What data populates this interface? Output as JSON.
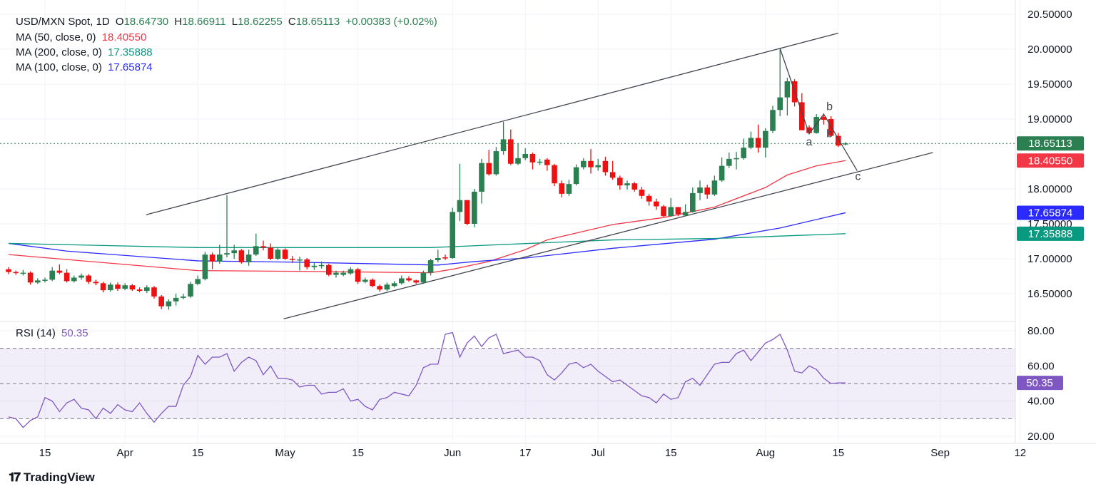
{
  "header": {
    "symbol": "USD/MXN Spot, 1D",
    "open_label": "O",
    "open": "18.64730",
    "high_label": "H",
    "high": "18.66911",
    "low_label": "L",
    "low": "18.62255",
    "close_label": "C",
    "close": "18.65113",
    "change": "+0.00383 (+0.02%)"
  },
  "indicators": [
    {
      "label": "MA (50, close, 0)",
      "value": "18.40550",
      "color": "#f23645"
    },
    {
      "label": "MA (200, close, 0)",
      "value": "17.35888",
      "color": "#089981"
    },
    {
      "label": "MA (100, close, 0)",
      "value": "17.65874",
      "color": "#2a2aff"
    }
  ],
  "rsi": {
    "label": "RSI (14)",
    "value": "50.35",
    "color": "#7e57c2"
  },
  "branding": {
    "name": "TradingView"
  },
  "colors": {
    "up": "#2b7f50",
    "down": "#ee1111",
    "grid": "#f0f3fa",
    "last_price": "#2b7f50"
  },
  "chart_data": {
    "type": "candlestick",
    "price_axis": {
      "ticks": [
        "20.50000",
        "20.00000",
        "19.50000",
        "19.00000",
        "18.00000",
        "17.50000",
        "17.00000",
        "16.50000"
      ],
      "range": [
        16.2,
        20.6
      ]
    },
    "price_labels": [
      {
        "value": "18.65113",
        "price": 18.65113,
        "color": "#2b7f50"
      },
      {
        "value": "18.40550",
        "price": 18.4055,
        "color": "#f23645"
      },
      {
        "value": "17.65874",
        "price": 17.65874,
        "color": "#2a2aff"
      },
      {
        "value": "17.35888",
        "price": 17.35888,
        "color": "#089981"
      }
    ],
    "time_axis": [
      {
        "label": "15",
        "bar": 5
      },
      {
        "label": "Apr",
        "bar": 16
      },
      {
        "label": "15",
        "bar": 26
      },
      {
        "label": "May",
        "bar": 38
      },
      {
        "label": "15",
        "bar": 48
      },
      {
        "label": "Jun",
        "bar": 61
      },
      {
        "label": "17",
        "bar": 71
      },
      {
        "label": "Jul",
        "bar": 81
      },
      {
        "label": "15",
        "bar": 91
      },
      {
        "label": "Aug",
        "bar": 104
      },
      {
        "label": "15",
        "bar": 114
      },
      {
        "label": "Sep",
        "bar": 128
      },
      {
        "label": "12",
        "bar": 139
      }
    ],
    "candles_ohlc": [
      [
        16.85,
        16.88,
        16.78,
        16.81
      ],
      [
        16.81,
        16.83,
        16.77,
        16.8
      ],
      [
        16.8,
        16.84,
        16.76,
        16.8
      ],
      [
        16.8,
        16.82,
        16.63,
        16.66
      ],
      [
        16.66,
        16.72,
        16.64,
        16.69
      ],
      [
        16.69,
        16.73,
        16.66,
        16.7
      ],
      [
        16.7,
        16.88,
        16.68,
        16.83
      ],
      [
        16.83,
        16.92,
        16.78,
        16.8
      ],
      [
        16.8,
        16.85,
        16.66,
        16.68
      ],
      [
        16.68,
        16.76,
        16.66,
        16.73
      ],
      [
        16.73,
        16.79,
        16.7,
        16.76
      ],
      [
        16.76,
        16.78,
        16.64,
        16.67
      ],
      [
        16.67,
        16.7,
        16.62,
        16.65
      ],
      [
        16.65,
        16.67,
        16.52,
        16.55
      ],
      [
        16.55,
        16.66,
        16.53,
        16.63
      ],
      [
        16.63,
        16.66,
        16.54,
        16.57
      ],
      [
        16.57,
        16.65,
        16.55,
        16.62
      ],
      [
        16.62,
        16.64,
        16.54,
        16.56
      ],
      [
        16.56,
        16.59,
        16.52,
        16.54
      ],
      [
        16.54,
        16.62,
        16.51,
        16.59
      ],
      [
        16.59,
        16.61,
        16.43,
        16.46
      ],
      [
        16.46,
        16.48,
        16.28,
        16.32
      ],
      [
        16.32,
        16.42,
        16.27,
        16.39
      ],
      [
        16.39,
        16.5,
        16.33,
        16.44
      ],
      [
        16.44,
        16.5,
        16.42,
        16.46
      ],
      [
        16.46,
        16.67,
        16.44,
        16.64
      ],
      [
        16.64,
        16.76,
        16.62,
        16.71
      ],
      [
        16.71,
        17.1,
        16.69,
        17.06
      ],
      [
        17.06,
        17.09,
        16.85,
        16.96
      ],
      [
        16.96,
        17.2,
        16.93,
        17.06
      ],
      [
        17.06,
        17.91,
        17.02,
        17.08
      ],
      [
        17.08,
        17.2,
        17.0,
        17.12
      ],
      [
        17.12,
        17.14,
        16.93,
        16.95
      ],
      [
        16.95,
        17.13,
        16.9,
        17.06
      ],
      [
        17.06,
        17.36,
        17.04,
        17.18
      ],
      [
        17.18,
        17.26,
        17.12,
        17.16
      ],
      [
        17.16,
        17.22,
        16.98,
        17.0
      ],
      [
        17.0,
        17.16,
        16.98,
        17.13
      ],
      [
        17.13,
        17.15,
        16.98,
        17.0
      ],
      [
        17.0,
        17.04,
        16.94,
        16.99
      ],
      [
        16.99,
        17.03,
        16.83,
        16.99
      ],
      [
        16.99,
        17.01,
        16.85,
        16.88
      ],
      [
        16.88,
        16.94,
        16.84,
        16.9
      ],
      [
        16.9,
        16.96,
        16.86,
        16.91
      ],
      [
        16.91,
        16.93,
        16.75,
        16.77
      ],
      [
        16.77,
        16.83,
        16.73,
        16.8
      ],
      [
        16.77,
        16.83,
        16.75,
        16.8
      ],
      [
        16.79,
        16.88,
        16.77,
        16.85
      ],
      [
        16.85,
        16.87,
        16.64,
        16.67
      ],
      [
        16.67,
        16.73,
        16.65,
        16.7
      ],
      [
        16.7,
        16.72,
        16.59,
        16.61
      ],
      [
        16.61,
        16.63,
        16.53,
        16.56
      ],
      [
        16.56,
        16.66,
        16.54,
        16.63
      ],
      [
        16.61,
        16.68,
        16.59,
        16.65
      ],
      [
        16.65,
        16.76,
        16.63,
        16.72
      ],
      [
        16.72,
        16.75,
        16.67,
        16.69
      ],
      [
        16.69,
        16.7,
        16.64,
        16.66
      ],
      [
        16.66,
        16.83,
        16.64,
        16.8
      ],
      [
        16.8,
        17.0,
        16.76,
        16.98
      ],
      [
        16.98,
        17.13,
        16.95,
        17.01
      ],
      [
        17.02,
        17.06,
        16.98,
        17.01
      ],
      [
        17.01,
        17.73,
        17.0,
        17.67
      ],
      [
        17.67,
        18.36,
        17.54,
        17.84
      ],
      [
        17.84,
        17.84,
        17.48,
        17.5
      ],
      [
        17.5,
        18.0,
        17.45,
        17.96
      ],
      [
        17.96,
        18.43,
        17.79,
        18.37
      ],
      [
        18.37,
        18.56,
        18.19,
        18.21
      ],
      [
        18.21,
        18.6,
        18.19,
        18.54
      ],
      [
        18.54,
        18.96,
        18.49,
        18.71
      ],
      [
        18.71,
        18.85,
        18.34,
        18.36
      ],
      [
        18.36,
        18.65,
        18.34,
        18.44
      ],
      [
        18.44,
        18.58,
        18.41,
        18.5
      ],
      [
        18.5,
        18.52,
        18.28,
        18.38
      ],
      [
        18.38,
        18.43,
        18.34,
        18.39
      ],
      [
        18.42,
        18.44,
        18.26,
        18.34
      ],
      [
        18.34,
        18.36,
        18.04,
        18.08
      ],
      [
        18.08,
        18.12,
        17.88,
        17.93
      ],
      [
        17.93,
        18.13,
        17.9,
        18.07
      ],
      [
        18.07,
        18.35,
        18.05,
        18.31
      ],
      [
        18.31,
        18.44,
        18.28,
        18.4
      ],
      [
        18.4,
        18.57,
        18.22,
        18.31
      ],
      [
        18.31,
        18.43,
        18.26,
        18.34
      ],
      [
        18.4,
        18.46,
        18.19,
        18.24
      ],
      [
        18.24,
        18.4,
        18.13,
        18.16
      ],
      [
        18.16,
        18.19,
        17.99,
        18.05
      ],
      [
        18.05,
        18.12,
        17.99,
        18.08
      ],
      [
        18.08,
        18.1,
        17.96,
        17.99
      ],
      [
        17.99,
        18.03,
        17.86,
        17.9
      ],
      [
        17.9,
        17.93,
        17.76,
        17.82
      ],
      [
        17.82,
        17.86,
        17.7,
        17.75
      ],
      [
        17.75,
        17.77,
        17.6,
        17.61
      ],
      [
        17.61,
        17.87,
        17.6,
        17.74
      ],
      [
        17.74,
        17.74,
        17.61,
        17.64
      ],
      [
        17.62,
        17.78,
        17.61,
        17.67
      ],
      [
        17.67,
        18.02,
        17.66,
        17.94
      ],
      [
        17.94,
        18.12,
        17.84,
        18.02
      ],
      [
        18.02,
        18.06,
        17.86,
        17.92
      ],
      [
        17.92,
        18.19,
        17.9,
        18.12
      ],
      [
        18.12,
        18.45,
        18.1,
        18.33
      ],
      [
        18.33,
        18.52,
        18.3,
        18.43
      ],
      [
        18.43,
        18.53,
        18.28,
        18.44
      ],
      [
        18.44,
        18.72,
        18.42,
        18.59
      ],
      [
        18.59,
        18.82,
        18.57,
        18.73
      ],
      [
        18.73,
        18.92,
        18.52,
        18.59
      ],
      [
        18.59,
        18.87,
        18.45,
        18.83
      ],
      [
        18.83,
        19.19,
        18.8,
        19.13
      ],
      [
        19.13,
        20.01,
        19.04,
        19.31
      ],
      [
        19.31,
        19.59,
        19.05,
        19.54
      ],
      [
        19.54,
        19.57,
        19.18,
        19.24
      ],
      [
        19.24,
        19.37,
        18.84,
        18.84
      ],
      [
        18.88,
        18.91,
        18.78,
        18.8
      ],
      [
        18.8,
        19.07,
        18.79,
        19.03
      ],
      [
        19.03,
        19.08,
        18.92,
        18.99
      ],
      [
        19.0,
        19.04,
        18.75,
        18.76
      ],
      [
        18.76,
        18.8,
        18.6,
        18.62
      ],
      [
        18.6473,
        18.66911,
        18.62255,
        18.65113
      ]
    ],
    "moving_averages": [
      {
        "name": "MA 50",
        "color": "#f23645",
        "points": [
          [
            0,
            17.06
          ],
          [
            26,
            16.83
          ],
          [
            40,
            16.82
          ],
          [
            58,
            16.8
          ],
          [
            61,
            16.85
          ],
          [
            66,
            16.96
          ],
          [
            71,
            17.13
          ],
          [
            74,
            17.27
          ],
          [
            83,
            17.49
          ],
          [
            90,
            17.59
          ],
          [
            97,
            17.74
          ],
          [
            104,
            18.02
          ],
          [
            107,
            18.2
          ],
          [
            111,
            18.33
          ],
          [
            115,
            18.4055
          ]
        ]
      },
      {
        "name": "MA 100",
        "color": "#2a2aff",
        "points": [
          [
            0,
            17.22
          ],
          [
            8,
            17.11
          ],
          [
            26,
            16.97
          ],
          [
            40,
            16.95
          ],
          [
            59,
            16.91
          ],
          [
            64,
            16.96
          ],
          [
            71,
            17.01
          ],
          [
            83,
            17.15
          ],
          [
            97,
            17.28
          ],
          [
            106,
            17.44
          ],
          [
            115,
            17.65874
          ]
        ]
      },
      {
        "name": "MA 200",
        "color": "#089981",
        "points": [
          [
            0,
            17.22
          ],
          [
            26,
            17.16
          ],
          [
            58,
            17.16
          ],
          [
            83,
            17.27
          ],
          [
            97,
            17.29
          ],
          [
            115,
            17.35888
          ]
        ]
      }
    ],
    "trendlines": [
      {
        "from": [
          18.9,
          17.63
        ],
        "to": [
          114,
          20.23
        ]
      },
      {
        "from": [
          37.8,
          16.14
        ],
        "to": [
          127,
          18.52
        ]
      }
    ],
    "wave_path": [
      [
        106,
        20.01
      ],
      [
        110,
        18.79
      ],
      [
        112,
        19.07
      ],
      [
        116.6,
        18.26
      ]
    ],
    "wave_labels": [
      {
        "text": "a",
        "bar": 110,
        "price": 18.62
      },
      {
        "text": "b",
        "bar": 112.8,
        "price": 19.13
      },
      {
        "text": "b",
        "bar": 112.8,
        "price": 18.74
      },
      {
        "text": "c",
        "bar": 116.7,
        "price": 18.13
      }
    ],
    "rsi_axis": {
      "ticks": [
        "80.00",
        "60.00",
        "40.00",
        "20.00"
      ],
      "range": [
        20,
        80
      ],
      "bands": [
        30,
        70
      ]
    },
    "rsi_values": [
      31,
      30,
      25,
      29,
      31,
      42,
      40,
      34,
      39,
      41,
      36,
      35,
      30,
      36,
      33,
      38,
      35,
      34,
      39,
      33,
      28,
      33,
      37,
      37,
      49,
      54,
      66,
      61,
      65,
      65,
      67,
      57,
      62,
      65,
      63,
      55,
      60,
      53,
      53,
      52,
      48,
      49,
      49,
      44,
      45,
      45,
      47,
      40,
      41,
      37,
      35,
      41,
      42,
      45,
      44,
      43,
      49,
      59,
      61,
      61,
      78,
      79,
      65,
      73,
      77,
      71,
      76,
      78,
      67,
      68,
      69,
      65,
      65,
      63,
      55,
      52,
      56,
      61,
      62,
      59,
      61,
      57,
      54,
      51,
      52,
      49,
      46,
      43,
      42,
      39,
      44,
      41,
      42,
      51,
      53,
      49,
      55,
      61,
      62,
      62,
      67,
      69,
      63,
      68,
      73,
      75,
      78,
      69,
      57,
      56,
      60,
      58,
      53,
      50,
      50.35,
      50.35
    ]
  }
}
